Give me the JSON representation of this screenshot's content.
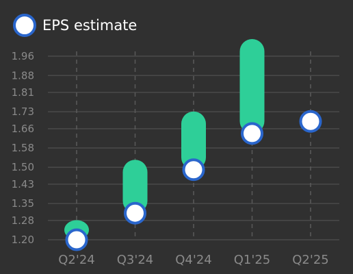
{
  "chart_data": {
    "type": "bar",
    "categories": [
      "Q2'24",
      "Q3'24",
      "Q4'24",
      "Q1'25",
      "Q2'25"
    ],
    "series": [
      {
        "name": "EPS estimate",
        "values": [
          1.2,
          1.31,
          1.49,
          1.64,
          1.69
        ]
      },
      {
        "name": "",
        "values": [
          1.23,
          1.48,
          1.68,
          1.98,
          null
        ]
      }
    ],
    "ylim": [
      1.2,
      1.98
    ],
    "yticks": [
      "1.20",
      "1.28",
      "1.35",
      "1.43",
      "1.50",
      "1.58",
      "1.66",
      "1.73",
      "1.81",
      "1.88",
      "1.96"
    ],
    "ytick_values": [
      1.2,
      1.28,
      1.35,
      1.43,
      1.5,
      1.58,
      1.66,
      1.73,
      1.81,
      1.88,
      1.96
    ],
    "grid": true,
    "legend": "top-left",
    "colors": {
      "background": "#303030",
      "grid": "#4a4a4a",
      "vgrid": "#5a5a5a",
      "bar": "#2ecf98",
      "marker_fill": "#ffffff",
      "marker_stroke": "#2a66cc",
      "text": "#8a8a8a",
      "legend_text": "#ffffff"
    }
  }
}
